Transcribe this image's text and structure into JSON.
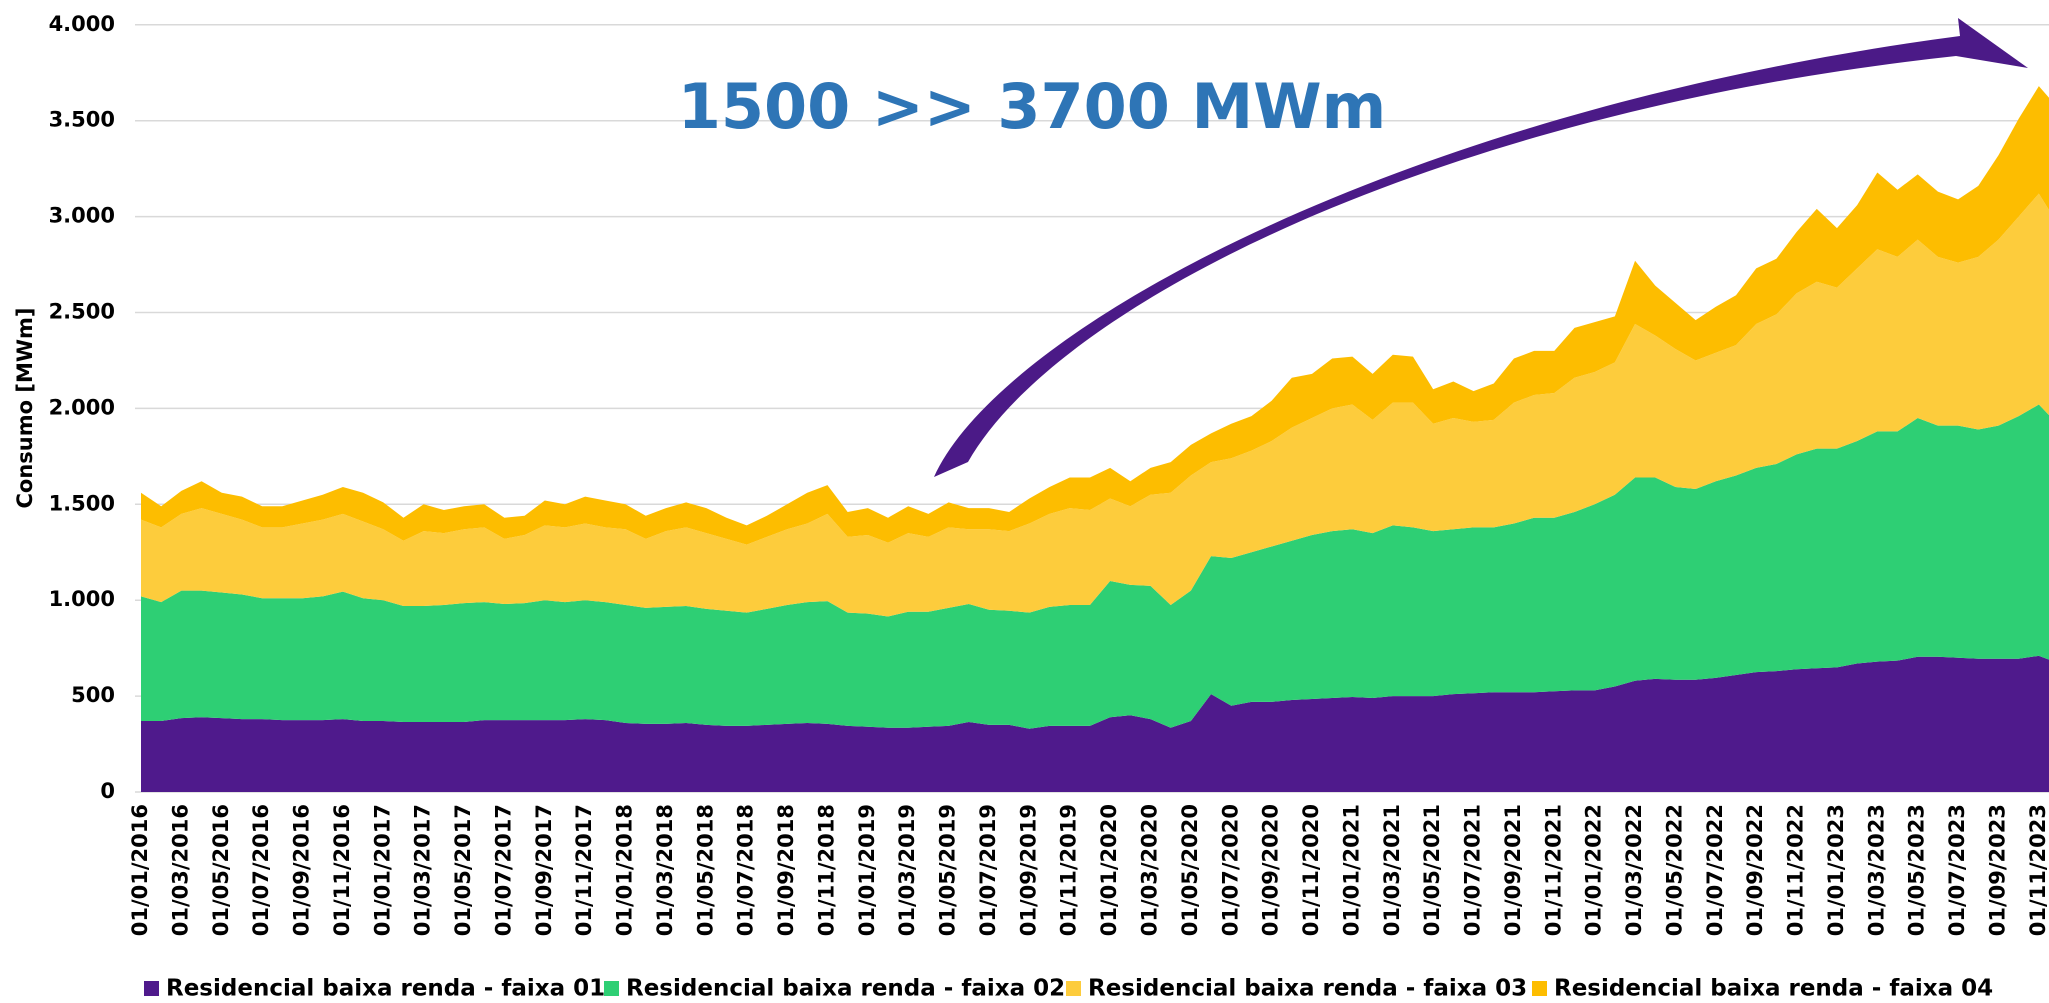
{
  "chart_data": {
    "type": "stacked_area",
    "annotation": "1500 >> 3700 MWm",
    "ylabel": "Consumo [MWm]",
    "categories": [
      "01/01/2016",
      null,
      "01/03/2016",
      null,
      "01/05/2016",
      null,
      "01/07/2016",
      null,
      "01/09/2016",
      null,
      "01/11/2016",
      null,
      "01/01/2017",
      null,
      "01/03/2017",
      null,
      "01/05/2017",
      null,
      "01/07/2017",
      null,
      "01/09/2017",
      null,
      "01/11/2017",
      null,
      "01/01/2018",
      null,
      "01/03/2018",
      null,
      "01/05/2018",
      null,
      "01/07/2018",
      null,
      "01/09/2018",
      null,
      "01/11/2018",
      null,
      "01/01/2019",
      null,
      "01/03/2019",
      null,
      "01/05/2019",
      null,
      "01/07/2019",
      null,
      "01/09/2019",
      null,
      "01/11/2019",
      null,
      "01/01/2020",
      null,
      "01/03/2020",
      null,
      "01/05/2020",
      null,
      "01/07/2020",
      null,
      "01/09/2020",
      null,
      "01/11/2020",
      null,
      "01/01/2021",
      null,
      "01/03/2021",
      null,
      "01/05/2021",
      null,
      "01/07/2021",
      null,
      "01/09/2021",
      null,
      "01/11/2021",
      null,
      "01/01/2022",
      null,
      "01/03/2022",
      null,
      "01/05/2022",
      null,
      "01/07/2022",
      null,
      "01/09/2022",
      null,
      "01/11/2022",
      null,
      "01/01/2023",
      null,
      "01/03/2023",
      null,
      "01/05/2023",
      null,
      "01/07/2023",
      null,
      "01/09/2023",
      null,
      "01/11/2023",
      null
    ],
    "series": [
      {
        "name": "Residencial baixa renda - faixa 01",
        "color": "#4f1a8c",
        "values": [
          370,
          370,
          385,
          390,
          385,
          380,
          380,
          375,
          375,
          375,
          380,
          370,
          370,
          365,
          365,
          365,
          365,
          375,
          375,
          375,
          375,
          375,
          380,
          375,
          360,
          355,
          355,
          360,
          350,
          345,
          345,
          350,
          355,
          360,
          355,
          345,
          340,
          335,
          335,
          340,
          345,
          365,
          350,
          350,
          330,
          345,
          345,
          345,
          390,
          400,
          380,
          335,
          370,
          510,
          450,
          470,
          470,
          480,
          485,
          490,
          495,
          490,
          500,
          500,
          500,
          510,
          515,
          520,
          520,
          520,
          525,
          530,
          530,
          550,
          580,
          590,
          585,
          585,
          595,
          610,
          625,
          630,
          640,
          645,
          650,
          670,
          680,
          685,
          705,
          705,
          700,
          695,
          695,
          695,
          710,
          670
        ]
      },
      {
        "name": "Residencial baixa renda - faixa 02",
        "color": "#2ecf74",
        "values": [
          650,
          620,
          665,
          660,
          655,
          650,
          630,
          635,
          635,
          645,
          665,
          640,
          630,
          605,
          605,
          610,
          620,
          615,
          605,
          610,
          625,
          615,
          620,
          615,
          615,
          605,
          610,
          610,
          605,
          600,
          590,
          605,
          620,
          630,
          640,
          590,
          590,
          580,
          605,
          600,
          615,
          615,
          600,
          595,
          605,
          620,
          630,
          630,
          710,
          680,
          695,
          640,
          680,
          720,
          770,
          780,
          810,
          830,
          855,
          870,
          875,
          860,
          890,
          880,
          860,
          860,
          865,
          860,
          880,
          910,
          905,
          930,
          970,
          1000,
          1060,
          1050,
          1005,
          995,
          1025,
          1040,
          1065,
          1080,
          1120,
          1145,
          1140,
          1160,
          1200,
          1195,
          1245,
          1205,
          1210,
          1195,
          1215,
          1265,
          1310,
          1240
        ]
      },
      {
        "name": "Residencial baixa renda - faixa 03",
        "color": "#fdcc3c",
        "values": [
          400,
          390,
          400,
          430,
          410,
          390,
          370,
          370,
          390,
          400,
          405,
          400,
          370,
          340,
          390,
          375,
          385,
          390,
          340,
          355,
          390,
          390,
          400,
          390,
          395,
          360,
          395,
          410,
          395,
          375,
          355,
          375,
          395,
          410,
          455,
          395,
          410,
          385,
          410,
          390,
          420,
          390,
          420,
          415,
          465,
          485,
          505,
          495,
          430,
          410,
          475,
          585,
          600,
          490,
          520,
          530,
          550,
          590,
          610,
          640,
          650,
          590,
          640,
          650,
          560,
          580,
          550,
          560,
          630,
          640,
          650,
          700,
          690,
          690,
          800,
          740,
          720,
          670,
          670,
          680,
          750,
          780,
          840,
          870,
          840,
          900,
          950,
          910,
          930,
          880,
          850,
          900,
          970,
          1040,
          1100,
          1040
        ]
      },
      {
        "name": "Residencial baixa renda - faixa 04",
        "color": "#fdbd00",
        "values": [
          140,
          110,
          120,
          140,
          110,
          120,
          110,
          110,
          120,
          130,
          140,
          150,
          140,
          120,
          140,
          120,
          120,
          120,
          110,
          100,
          130,
          120,
          140,
          140,
          130,
          120,
          120,
          130,
          130,
          110,
          100,
          110,
          130,
          160,
          150,
          130,
          140,
          130,
          140,
          120,
          130,
          110,
          110,
          100,
          130,
          140,
          160,
          170,
          160,
          130,
          140,
          160,
          160,
          150,
          180,
          180,
          210,
          260,
          230,
          260,
          250,
          240,
          250,
          240,
          180,
          190,
          160,
          190,
          230,
          230,
          220,
          260,
          260,
          240,
          330,
          260,
          240,
          210,
          240,
          260,
          290,
          290,
          320,
          380,
          310,
          330,
          400,
          350,
          340,
          340,
          330,
          370,
          440,
          510,
          560,
          610
        ]
      }
    ],
    "ylim": [
      0,
      4000
    ],
    "yticks": [
      0,
      500,
      {
        "value": 1000,
        "label": "1.000"
      },
      {
        "value": 1500,
        "label": "1.500"
      },
      {
        "value": 2000,
        "label": "2.000"
      },
      {
        "value": 2500,
        "label": "2.500"
      },
      {
        "value": 3000,
        "label": "3.000"
      },
      {
        "value": 3500,
        "label": "3.500"
      },
      {
        "value": 4000,
        "label": "4.000"
      }
    ],
    "grid": true,
    "legend": "bottom"
  }
}
